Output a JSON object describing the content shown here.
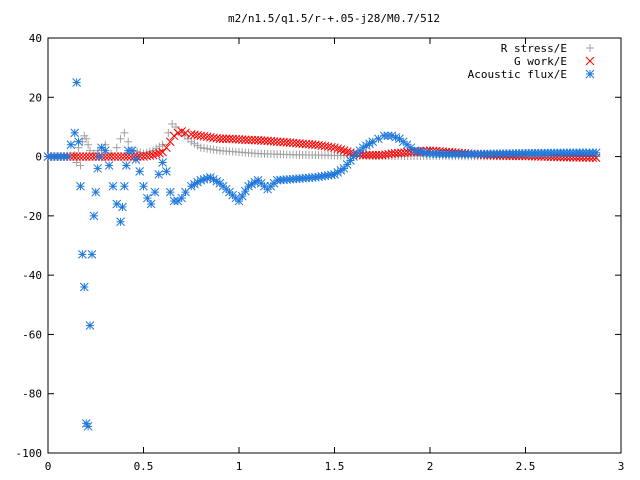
{
  "chart_data": {
    "type": "scatter",
    "title": "m2/n1.5/q1.5/r-+.05-j28/M0.7/512",
    "xlabel": "",
    "ylabel": "",
    "xlim": [
      0,
      3
    ],
    "ylim": [
      -100,
      40
    ],
    "x_ticks": [
      "0",
      "0.5",
      "1",
      "1.5",
      "2",
      "2.5",
      "3"
    ],
    "x_tick_values": [
      0,
      0.5,
      1,
      1.5,
      2,
      2.5,
      3
    ],
    "y_ticks": [
      "40",
      "20",
      "0",
      "-20",
      "-40",
      "-60",
      "-80",
      "-100"
    ],
    "y_tick_values": [
      40,
      20,
      0,
      -20,
      -40,
      -60,
      -80,
      -100
    ],
    "grid": false,
    "legend_position": "top-right",
    "series": [
      {
        "name": "R stress/E",
        "marker": "plus",
        "color": "#a0a0a0",
        "x": [
          0,
          0.1,
          0.14,
          0.15,
          0.16,
          0.17,
          0.18,
          0.19,
          0.2,
          0.21,
          0.22,
          0.24,
          0.26,
          0.28,
          0.3,
          0.33,
          0.36,
          0.38,
          0.4,
          0.42,
          0.45,
          0.5,
          0.55,
          0.6,
          0.63,
          0.65,
          0.67,
          0.7,
          0.75,
          0.8,
          0.9,
          1.0,
          1.1,
          1.2,
          1.3,
          1.4,
          1.5,
          1.6,
          1.7,
          1.8,
          1.9,
          2.0,
          2.2,
          2.4,
          2.6,
          2.8,
          2.87
        ],
        "y": [
          0,
          0,
          0.5,
          -2,
          3,
          -3,
          5,
          7,
          6,
          4,
          2,
          1,
          2,
          3,
          4,
          1,
          3,
          6,
          8,
          5,
          2,
          1,
          2,
          4,
          8,
          11,
          10,
          8,
          5,
          3,
          2,
          1.5,
          1,
          0.8,
          0.6,
          0.5,
          0.4,
          0.3,
          0.3,
          0.2,
          0.2,
          0.2,
          0.1,
          0.1,
          0.1,
          0.1,
          0.1
        ]
      },
      {
        "name": "G work/E",
        "marker": "cross",
        "color": "#ff0000",
        "x": [
          0,
          0.1,
          0.2,
          0.3,
          0.4,
          0.5,
          0.55,
          0.6,
          0.62,
          0.64,
          0.66,
          0.68,
          0.7,
          0.72,
          0.75,
          0.8,
          0.85,
          0.9,
          0.95,
          1.0,
          1.05,
          1.1,
          1.15,
          1.2,
          1.25,
          1.3,
          1.35,
          1.4,
          1.45,
          1.5,
          1.55,
          1.6,
          1.65,
          1.7,
          1.75,
          1.8,
          1.9,
          2.0,
          2.1,
          2.2,
          2.3,
          2.4,
          2.5,
          2.6,
          2.7,
          2.8,
          2.87
        ],
        "y": [
          0,
          0,
          0,
          0,
          0,
          0,
          0.5,
          1.5,
          3,
          5,
          7,
          8,
          8.5,
          8,
          7.5,
          7,
          6.5,
          6,
          6,
          5.8,
          5.6,
          5.5,
          5.3,
          5,
          4.8,
          4.5,
          4.2,
          4,
          3.5,
          3,
          2,
          1,
          0.5,
          0.5,
          0.5,
          1,
          1.5,
          2,
          1.5,
          1,
          0.5,
          0.3,
          0.2,
          0,
          -0.2,
          -0.3,
          -0.4
        ]
      },
      {
        "name": "Acoustic flux/E",
        "marker": "star",
        "color": "#1e78dc",
        "x": [
          0,
          0.05,
          0.1,
          0.14,
          0.15,
          0.16,
          0.17,
          0.18,
          0.19,
          0.2,
          0.21,
          0.22,
          0.23,
          0.24,
          0.25,
          0.26,
          0.27,
          0.28,
          0.3,
          0.32,
          0.34,
          0.36,
          0.38,
          0.39,
          0.4,
          0.41,
          0.42,
          0.44,
          0.46,
          0.48,
          0.5,
          0.52,
          0.54,
          0.56,
          0.58,
          0.6,
          0.62,
          0.64,
          0.66,
          0.68,
          0.7,
          0.72,
          0.75,
          0.8,
          0.85,
          0.9,
          0.95,
          1.0,
          1.05,
          1.1,
          1.15,
          1.2,
          1.3,
          1.4,
          1.5,
          1.55,
          1.6,
          1.65,
          1.7,
          1.73,
          1.76,
          1.8,
          1.84,
          1.88,
          1.92,
          1.96,
          2.0,
          2.1,
          2.2,
          2.4,
          2.6,
          2.8,
          2.87
        ],
        "y": [
          0,
          0,
          0,
          8,
          25,
          5,
          -10,
          -33,
          -44,
          -90,
          -91,
          -57,
          -33,
          -20,
          -12,
          -4,
          0,
          3,
          2,
          -3,
          -10,
          -16,
          -22,
          -17,
          -10,
          -3,
          2,
          2,
          -1,
          -5,
          -10,
          -14,
          -16,
          -12,
          -6,
          -2,
          -5,
          -12,
          -15,
          -15,
          -14,
          -12,
          -10,
          -8,
          -7,
          -9,
          -12,
          -15,
          -10,
          -8,
          -11,
          -8,
          -7.5,
          -7,
          -6,
          -4,
          0,
          3,
          5,
          6,
          7,
          7,
          6,
          4,
          2,
          1.5,
          1,
          0.8,
          0.8,
          1,
          1.2,
          1.3,
          1.3
        ]
      }
    ]
  }
}
